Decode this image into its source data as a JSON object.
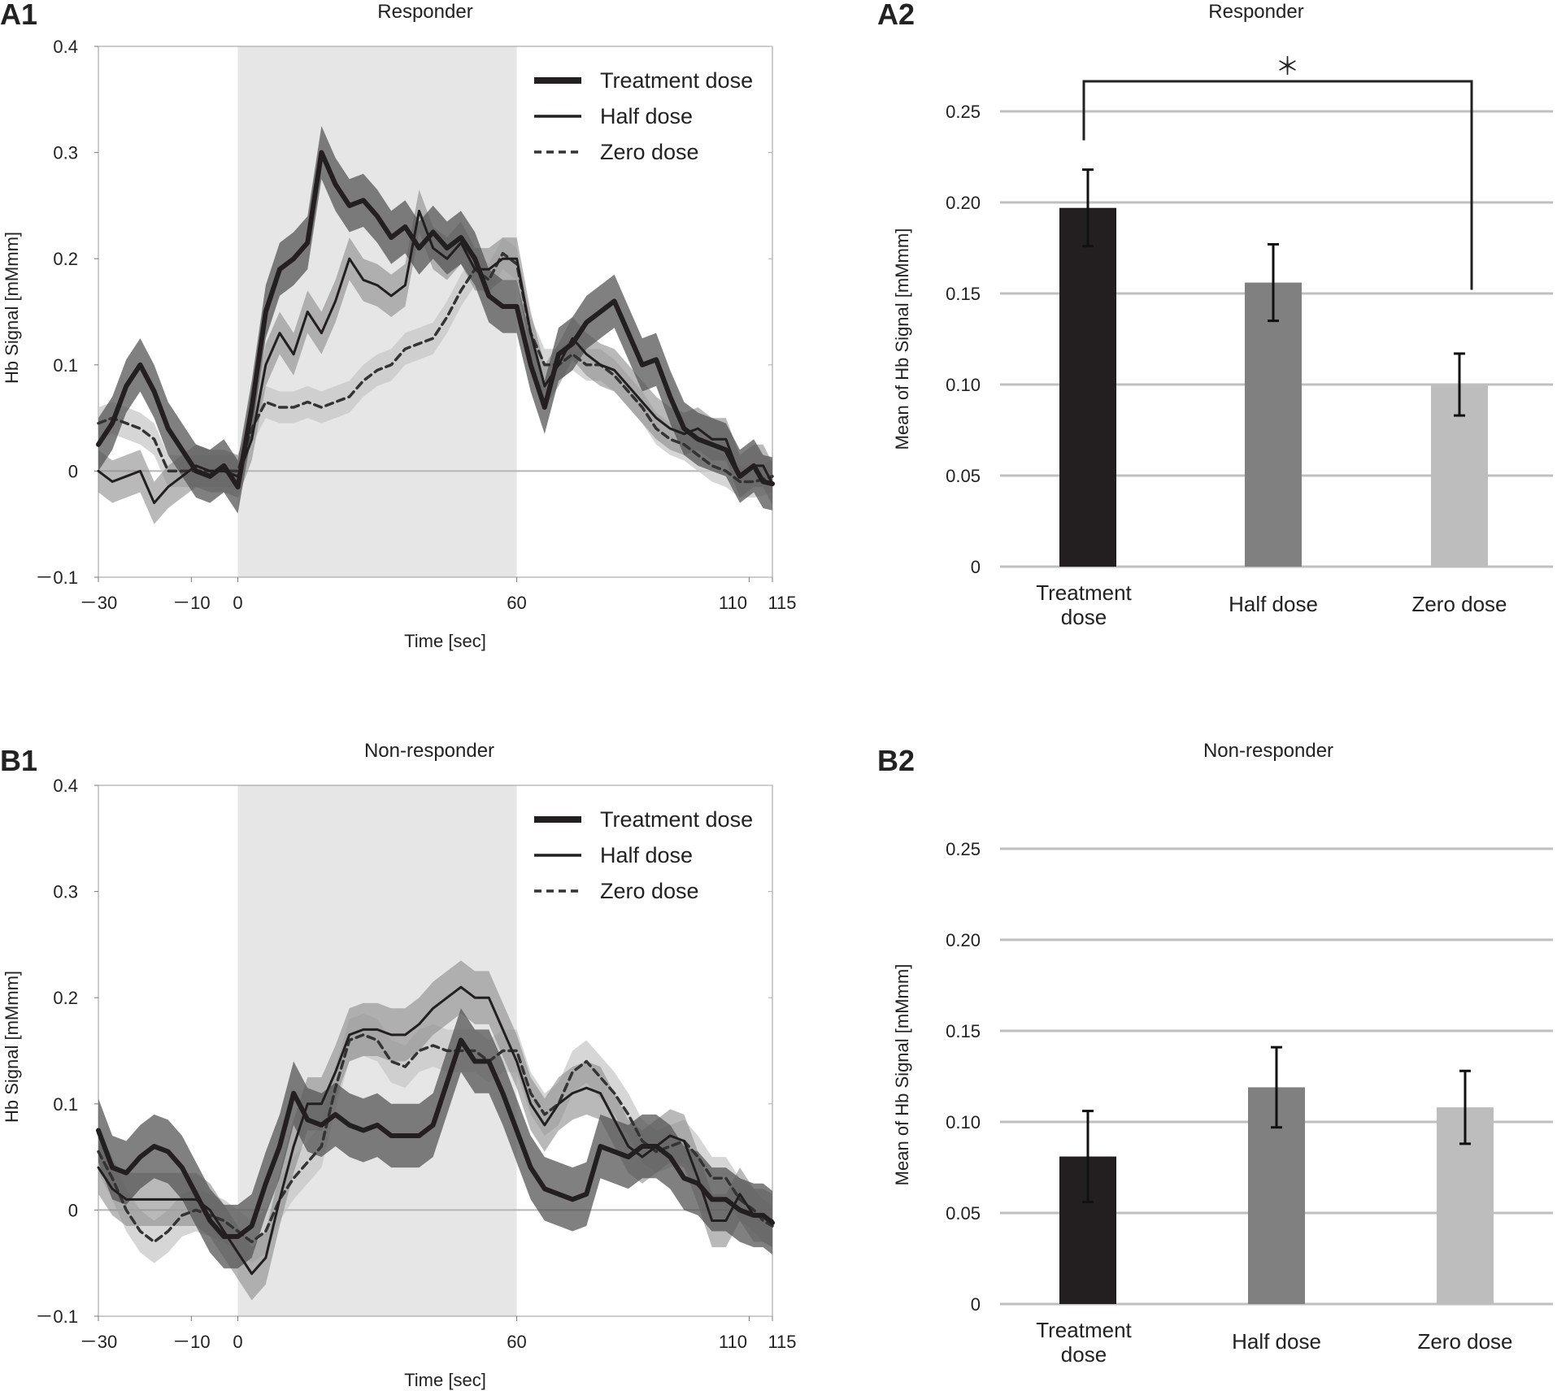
{
  "colors": {
    "treatment": "#231f20",
    "half": "#808080",
    "zero": "#bdbdbd",
    "stim_shade": "#e6e6e6",
    "grid": "#bfbfbf"
  },
  "chart_data": [
    {
      "id": "A1",
      "type": "line",
      "panel_label": "A1",
      "title": "Responder",
      "xlabel": "Time [sec]",
      "ylabel": "Hb Signal [mMmm]",
      "xlim": [
        -30,
        115
      ],
      "ylim": [
        -0.1,
        0.4
      ],
      "xticks": [
        -30,
        -10,
        0,
        60,
        110,
        115
      ],
      "xtick_labels": [
        "－30",
        "－10",
        "0",
        "60",
        "110",
        "115"
      ],
      "yticks": [
        -0.1,
        0,
        0.1,
        0.2,
        0.3,
        0.4
      ],
      "ytick_labels": [
        "－0.1",
        "0",
        "0.1",
        "0.2",
        "0.3",
        "0.4"
      ],
      "stimulus_window": [
        0,
        60
      ],
      "legend_position": "top-right",
      "x": [
        -30,
        -27,
        -24,
        -21,
        -18,
        -15,
        -12,
        -9,
        -6,
        -3,
        0,
        3,
        6,
        9,
        12,
        15,
        18,
        21,
        24,
        27,
        30,
        33,
        36,
        39,
        42,
        45,
        48,
        51,
        54,
        57,
        60,
        63,
        66,
        69,
        72,
        75,
        78,
        81,
        84,
        87,
        90,
        93,
        96,
        99,
        102,
        105,
        108,
        111,
        113,
        115
      ],
      "series": [
        {
          "name": "Treatment dose",
          "style": "thick",
          "values": [
            0.025,
            0.045,
            0.08,
            0.1,
            0.075,
            0.04,
            0.02,
            0.0,
            -0.005,
            0.005,
            -0.015,
            0.06,
            0.15,
            0.19,
            0.2,
            0.215,
            0.3,
            0.27,
            0.25,
            0.255,
            0.24,
            0.22,
            0.23,
            0.21,
            0.225,
            0.21,
            0.22,
            0.2,
            0.165,
            0.155,
            0.155,
            0.1,
            0.06,
            0.11,
            0.12,
            0.14,
            0.15,
            0.16,
            0.13,
            0.1,
            0.105,
            0.07,
            0.04,
            0.03,
            0.025,
            0.02,
            -0.005,
            0.005,
            -0.01,
            -0.012
          ],
          "band": 0.025
        },
        {
          "name": "Half dose",
          "style": "thin",
          "values": [
            0.0,
            -0.01,
            -0.005,
            0.0,
            -0.03,
            -0.015,
            -0.005,
            0.005,
            0.0,
            0.0,
            -0.005,
            0.03,
            0.1,
            0.13,
            0.11,
            0.15,
            0.13,
            0.16,
            0.2,
            0.18,
            0.175,
            0.165,
            0.175,
            0.245,
            0.21,
            0.2,
            0.215,
            0.19,
            0.19,
            0.2,
            0.2,
            0.13,
            0.08,
            0.1,
            0.125,
            0.11,
            0.1,
            0.095,
            0.08,
            0.065,
            0.05,
            0.04,
            0.035,
            0.04,
            0.03,
            0.03,
            -0.005,
            0.005,
            0.005,
            -0.012
          ],
          "band": 0.02
        },
        {
          "name": "Zero dose",
          "style": "dashed",
          "values": [
            0.045,
            0.05,
            0.045,
            0.04,
            0.03,
            0.0,
            0.0,
            0.0,
            0.0,
            0.0,
            0.0,
            0.04,
            0.065,
            0.06,
            0.06,
            0.065,
            0.06,
            0.065,
            0.07,
            0.085,
            0.095,
            0.1,
            0.115,
            0.12,
            0.125,
            0.145,
            0.17,
            0.19,
            0.18,
            0.205,
            0.195,
            0.13,
            0.1,
            0.1,
            0.11,
            0.1,
            0.1,
            0.09,
            0.075,
            0.06,
            0.04,
            0.03,
            0.025,
            0.015,
            0.005,
            0.0,
            -0.01,
            -0.01,
            -0.008,
            -0.005
          ],
          "band": 0.015
        }
      ]
    },
    {
      "id": "A2",
      "type": "bar",
      "panel_label": "A2",
      "title": "Responder",
      "ylabel": "Mean of Hb Signal [mMmm]",
      "ylim": [
        0,
        0.25
      ],
      "yticks": [
        0,
        0.05,
        0.1,
        0.15,
        0.2,
        0.25
      ],
      "ytick_labels": [
        "0",
        "0.05",
        "0.10",
        "0.15",
        "0.20",
        "0.25"
      ],
      "categories": [
        [
          "Treatment",
          "dose"
        ],
        [
          "Half dose"
        ],
        [
          "Zero dose"
        ]
      ],
      "values": [
        0.197,
        0.156,
        0.1
      ],
      "errors": [
        0.021,
        0.021,
        0.017
      ],
      "significance": {
        "from": 0,
        "to": 2,
        "label": "＊"
      }
    },
    {
      "id": "B1",
      "type": "line",
      "panel_label": "B1",
      "title": "Non-responder",
      "xlabel": "Time [sec]",
      "ylabel": "Hb Signal [mMmm]",
      "xlim": [
        -30,
        115
      ],
      "ylim": [
        -0.1,
        0.4
      ],
      "xticks": [
        -30,
        -10,
        0,
        60,
        110,
        115
      ],
      "xtick_labels": [
        "－30",
        "－10",
        "0",
        "60",
        "110",
        "115"
      ],
      "yticks": [
        -0.1,
        0,
        0.1,
        0.2,
        0.3,
        0.4
      ],
      "ytick_labels": [
        "－0.1",
        "0",
        "0.1",
        "0.2",
        "0.3",
        "0.4"
      ],
      "stimulus_window": [
        0,
        60
      ],
      "legend_position": "top-right",
      "x": [
        -30,
        -27,
        -24,
        -21,
        -18,
        -15,
        -12,
        -9,
        -6,
        -3,
        0,
        3,
        6,
        9,
        12,
        15,
        18,
        21,
        24,
        27,
        30,
        33,
        36,
        39,
        42,
        45,
        48,
        51,
        54,
        57,
        60,
        63,
        66,
        69,
        72,
        75,
        78,
        81,
        84,
        87,
        90,
        93,
        96,
        99,
        102,
        105,
        108,
        111,
        113,
        115
      ],
      "series": [
        {
          "name": "Treatment dose",
          "style": "thick",
          "values": [
            0.075,
            0.04,
            0.035,
            0.05,
            0.06,
            0.055,
            0.04,
            0.015,
            -0.01,
            -0.025,
            -0.025,
            -0.015,
            0.025,
            0.06,
            0.11,
            0.085,
            0.08,
            0.09,
            0.08,
            0.075,
            0.08,
            0.07,
            0.07,
            0.07,
            0.08,
            0.12,
            0.16,
            0.14,
            0.14,
            0.11,
            0.075,
            0.04,
            0.02,
            0.015,
            0.01,
            0.015,
            0.06,
            0.055,
            0.05,
            0.06,
            0.06,
            0.05,
            0.03,
            0.025,
            0.01,
            0.01,
            0.0,
            -0.005,
            -0.005,
            -0.012
          ],
          "band": 0.03
        },
        {
          "name": "Half dose",
          "style": "thin",
          "values": [
            0.04,
            0.02,
            0.01,
            0.01,
            0.01,
            0.01,
            0.01,
            0.01,
            0.0,
            -0.02,
            -0.04,
            -0.06,
            -0.045,
            0.01,
            0.06,
            0.1,
            0.1,
            0.13,
            0.165,
            0.17,
            0.17,
            0.165,
            0.165,
            0.175,
            0.19,
            0.2,
            0.21,
            0.2,
            0.2,
            0.17,
            0.14,
            0.1,
            0.08,
            0.1,
            0.11,
            0.115,
            0.11,
            0.085,
            0.06,
            0.05,
            0.06,
            0.07,
            0.065,
            0.03,
            -0.01,
            -0.01,
            0.015,
            -0.005,
            -0.005,
            -0.01
          ],
          "band": 0.025
        },
        {
          "name": "Zero dose",
          "style": "dashed",
          "values": [
            0.055,
            0.03,
            0.0,
            -0.02,
            -0.03,
            -0.02,
            -0.005,
            0.0,
            -0.005,
            -0.01,
            -0.02,
            -0.03,
            -0.02,
            0.01,
            0.03,
            0.045,
            0.06,
            0.115,
            0.16,
            0.165,
            0.16,
            0.14,
            0.135,
            0.15,
            0.155,
            0.15,
            0.15,
            0.15,
            0.14,
            0.15,
            0.15,
            0.11,
            0.09,
            0.1,
            0.13,
            0.14,
            0.125,
            0.11,
            0.09,
            0.065,
            0.055,
            0.06,
            0.065,
            0.05,
            0.03,
            0.03,
            0.01,
            0.0,
            -0.01,
            -0.015
          ],
          "band": 0.02
        }
      ]
    },
    {
      "id": "B2",
      "type": "bar",
      "panel_label": "B2",
      "title": "Non-responder",
      "ylabel": "Mean of Hb Signal [mMmm]",
      "ylim": [
        0,
        0.25
      ],
      "yticks": [
        0,
        0.05,
        0.1,
        0.15,
        0.2,
        0.25
      ],
      "ytick_labels": [
        "0",
        "0.05",
        "0.10",
        "0.15",
        "0.20",
        "0.25"
      ],
      "categories": [
        [
          "Treatment",
          "dose"
        ],
        [
          "Half dose"
        ],
        [
          "Zero dose"
        ]
      ],
      "values": [
        0.081,
        0.119,
        0.108
      ],
      "errors": [
        0.025,
        0.022,
        0.02
      ]
    }
  ]
}
